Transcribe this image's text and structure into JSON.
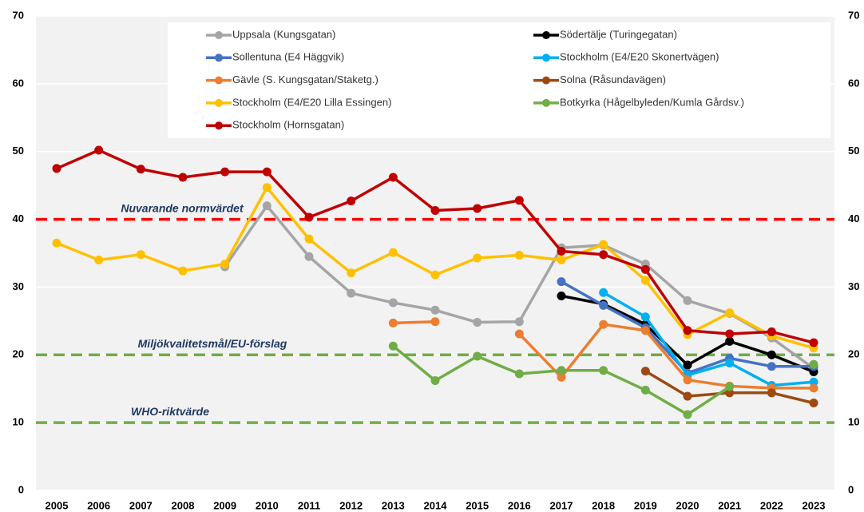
{
  "chart_data": {
    "type": "line",
    "categories": [
      "2005",
      "2006",
      "2007",
      "2008",
      "2009",
      "2010",
      "2011",
      "2012",
      "2013",
      "2014",
      "2015",
      "2016",
      "2017",
      "2018",
      "2019",
      "2020",
      "2021",
      "2022",
      "2023"
    ],
    "series": [
      {
        "name": "Uppsala (Kungsgatan)",
        "color": "#a5a5a5",
        "values": [
          null,
          null,
          null,
          null,
          33.0,
          42.0,
          34.5,
          29.1,
          27.7,
          26.6,
          24.8,
          24.9,
          35.8,
          36.2,
          33.4,
          28.0,
          26.1,
          22.5,
          18.0
        ]
      },
      {
        "name": "Södertälje (Turingegatan)",
        "color": "#000000",
        "values": [
          null,
          null,
          null,
          null,
          null,
          null,
          null,
          null,
          null,
          null,
          null,
          null,
          28.7,
          27.5,
          24.5,
          18.5,
          22.0,
          20.0,
          17.5
        ]
      },
      {
        "name": "Sollentuna (E4 Häggvik)",
        "color": "#4472c4",
        "values": [
          null,
          null,
          null,
          null,
          null,
          null,
          null,
          null,
          null,
          null,
          null,
          null,
          30.8,
          27.3,
          24.0,
          17.3,
          19.5,
          18.3,
          18.3
        ]
      },
      {
        "name": "Stockholm (E4/E20 Skonertvägen)",
        "color": "#00b0f0",
        "values": [
          null,
          null,
          null,
          null,
          null,
          null,
          null,
          null,
          null,
          null,
          null,
          null,
          null,
          29.2,
          25.6,
          17.0,
          18.8,
          15.5,
          16.0
        ]
      },
      {
        "name": "Gävle (S. Kungsgatan/Staketg.)",
        "color": "#ed7d31",
        "values": [
          null,
          null,
          null,
          null,
          null,
          null,
          null,
          null,
          24.7,
          24.9,
          null,
          23.1,
          16.7,
          24.5,
          23.6,
          16.3,
          15.4,
          15.1,
          15.1
        ]
      },
      {
        "name": "Solna (Råsundavägen)",
        "color": "#9c4a12",
        "values": [
          null,
          null,
          null,
          null,
          null,
          null,
          null,
          null,
          null,
          null,
          null,
          null,
          null,
          null,
          17.6,
          13.9,
          14.4,
          14.4,
          12.9
        ]
      },
      {
        "name": "Stockholm (E4/E20 Lilla Essingen)",
        "color": "#ffc000",
        "values": [
          36.5,
          34.0,
          34.8,
          32.4,
          33.4,
          44.7,
          37.1,
          32.1,
          35.1,
          31.8,
          34.3,
          34.7,
          34.0,
          36.3,
          31.0,
          23.0,
          26.2,
          22.8,
          21.0
        ]
      },
      {
        "name": "Botkyrka (Hågelbyleden/Kumla Gårdsv.)",
        "color": "#70ad47",
        "values": [
          null,
          null,
          null,
          null,
          null,
          null,
          null,
          null,
          21.3,
          16.2,
          19.8,
          17.2,
          17.7,
          17.7,
          14.8,
          11.2,
          15.3,
          null,
          18.6
        ]
      },
      {
        "name": "Stockholm (Hornsgatan)",
        "color": "#c00000",
        "values": [
          47.5,
          50.2,
          47.4,
          46.2,
          47.0,
          47.0,
          40.3,
          42.7,
          46.2,
          41.3,
          41.6,
          42.8,
          35.3,
          34.8,
          32.6,
          23.6,
          23.1,
          23.4,
          21.8
        ]
      }
    ],
    "reference_lines": [
      {
        "value": 40,
        "label": "Nuvarande normvärdet",
        "color": "#ff0000"
      },
      {
        "value": 20,
        "label": "Miljökvalitetsmål/EU-förslag",
        "color": "#70ad47"
      },
      {
        "value": 10,
        "label": "WHO-riktvärde",
        "color": "#70ad47"
      }
    ],
    "ylim": [
      0,
      70
    ],
    "yticks": [
      0,
      10,
      20,
      30,
      40,
      50,
      60,
      70
    ],
    "y2lim": [
      0,
      70
    ],
    "y2ticks": [
      0,
      10,
      20,
      30,
      40,
      50,
      60,
      70
    ],
    "grid": true
  }
}
